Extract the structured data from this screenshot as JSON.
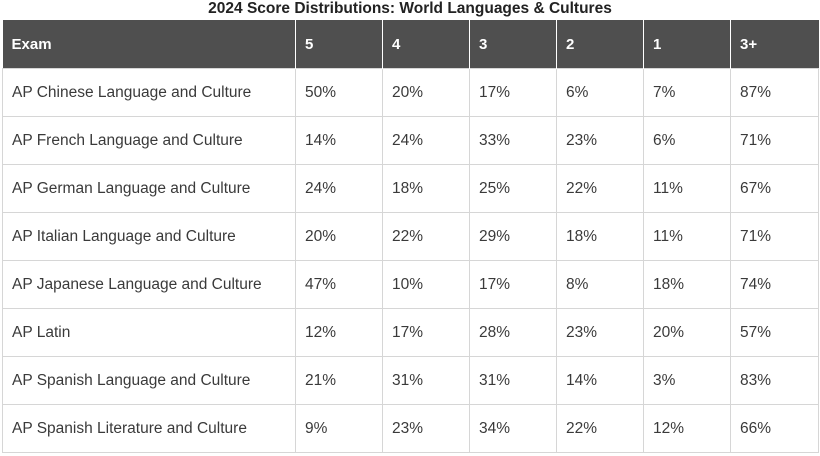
{
  "chart_data": {
    "type": "table",
    "title": "2024 Score Distributions: World Languages & Cultures",
    "columns": [
      "Exam",
      "5",
      "4",
      "3",
      "2",
      "1",
      "3+"
    ],
    "rows": [
      [
        "AP Chinese Language and Culture",
        "50%",
        "20%",
        "17%",
        "6%",
        "7%",
        "87%"
      ],
      [
        "AP French Language and Culture",
        "14%",
        "24%",
        "33%",
        "23%",
        "6%",
        "71%"
      ],
      [
        "AP German Language and Culture",
        "24%",
        "18%",
        "25%",
        "22%",
        "11%",
        "67%"
      ],
      [
        "AP Italian Language and Culture",
        "20%",
        "22%",
        "29%",
        "18%",
        "11%",
        "71%"
      ],
      [
        "AP Japanese Language and Culture",
        "47%",
        "10%",
        "17%",
        "8%",
        "18%",
        "74%"
      ],
      [
        "AP Latin",
        "12%",
        "17%",
        "28%",
        "23%",
        "20%",
        "57%"
      ],
      [
        "AP Spanish Language and Culture",
        "21%",
        "31%",
        "31%",
        "14%",
        "3%",
        "83%"
      ],
      [
        "AP Spanish Literature and Culture",
        "9%",
        "23%",
        "34%",
        "22%",
        "12%",
        "66%"
      ]
    ],
    "colors": {
      "header_background": "#4f4f4f",
      "header_text": "#ffffff",
      "border": "#d6d6d6",
      "cell_text": "#3a3a3a"
    }
  }
}
